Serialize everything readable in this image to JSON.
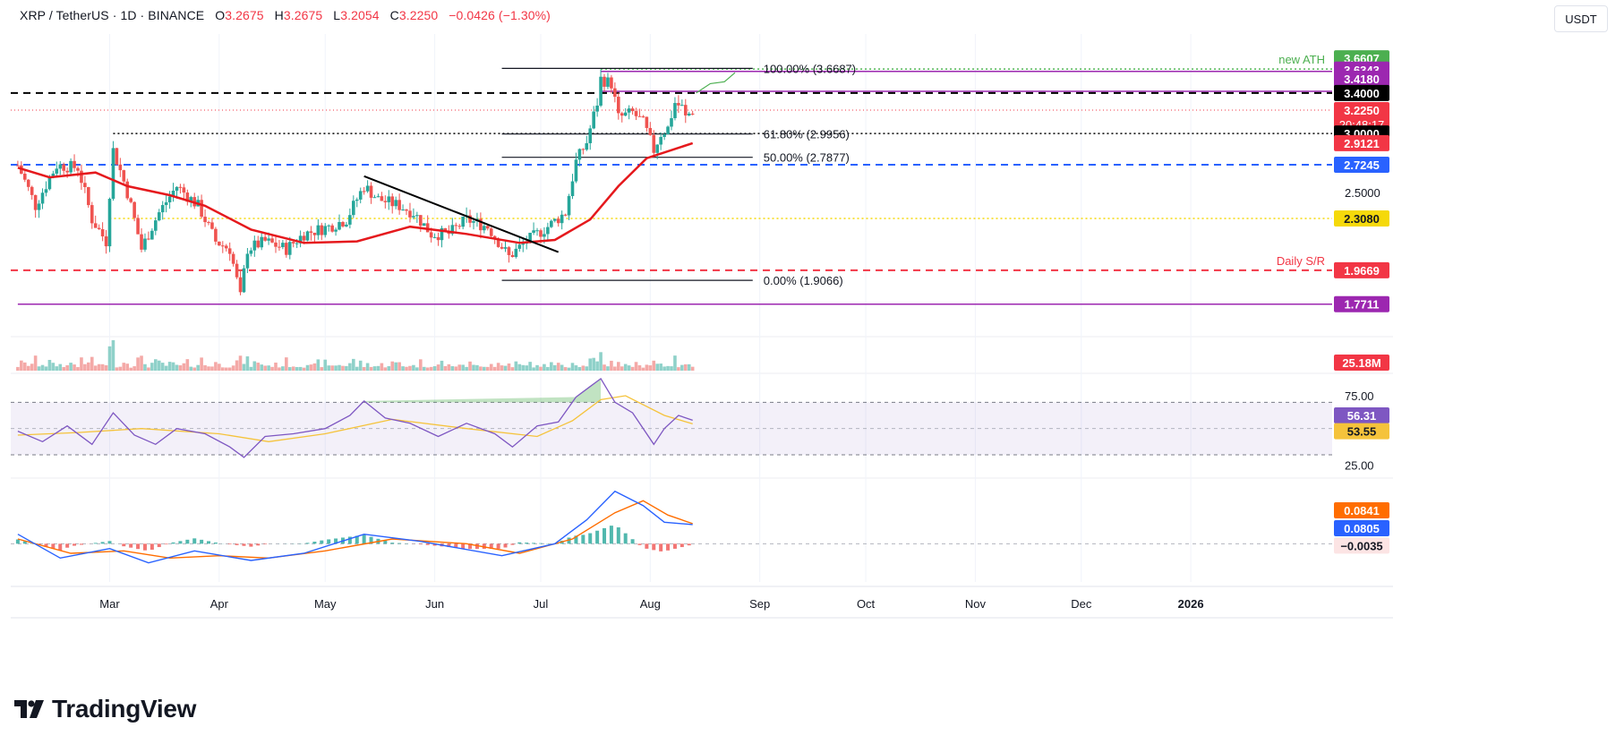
{
  "header": {
    "symbol": "XRP / TetherUS · 1D · BINANCE",
    "open_label": "O",
    "open": "3.2675",
    "high_label": "H",
    "high": "3.2675",
    "low_label": "L",
    "low": "3.2054",
    "close_label": "C",
    "close": "3.2250",
    "change": "−0.0426 (−1.30%)"
  },
  "currency_button": "USDT",
  "brand": {
    "name": "TradingView"
  },
  "colors": {
    "up": "#26a69a",
    "down": "#ef5350",
    "ma": "#e5191d",
    "rsi": "#7e57c2",
    "rsi_ma": "#f5c33b",
    "macd": "#2962ff",
    "signal": "#ff6d00",
    "purple": "#9c27b0",
    "blue": "#2962ff",
    "red": "#f23645",
    "yellow": "#f5d90a",
    "green": "#4caf50",
    "black": "#000000"
  },
  "chart_data": [
    {
      "type": "candlestick",
      "pane": "price",
      "ylim": [
        1.62,
        3.86
      ],
      "scale": "log",
      "x_labels": [
        {
          "label": "Mar",
          "date": "2025-03-01"
        },
        {
          "label": "Apr",
          "date": "2025-04-01"
        },
        {
          "label": "May",
          "date": "2025-05-01"
        },
        {
          "label": "Jun",
          "date": "2025-06-01"
        },
        {
          "label": "Jul",
          "date": "2025-07-01"
        },
        {
          "label": "Aug",
          "date": "2025-08-01"
        },
        {
          "label": "Sep",
          "date": "2025-09-01"
        },
        {
          "label": "Oct",
          "date": "2025-10-01"
        },
        {
          "label": "Nov",
          "date": "2025-11-01"
        },
        {
          "label": "Dec",
          "date": "2025-12-01"
        },
        {
          "label": "2026",
          "date": "2026-01-01"
        }
      ],
      "x_range": [
        "2025-02-01",
        "2026-02-10"
      ],
      "candles_start": "2025-02-03",
      "candles_end": "2025-08-13",
      "close_path": [
        [
          "2025-02-03",
          2.72
        ],
        [
          "2025-02-08",
          2.4
        ],
        [
          "2025-02-14",
          2.72
        ],
        [
          "2025-02-20",
          2.7
        ],
        [
          "2025-02-24",
          2.3
        ],
        [
          "2025-02-28",
          2.15
        ],
        [
          "2025-03-02",
          2.85
        ],
        [
          "2025-03-06",
          2.5
        ],
        [
          "2025-03-10",
          2.1
        ],
        [
          "2025-03-15",
          2.35
        ],
        [
          "2025-03-20",
          2.55
        ],
        [
          "2025-03-26",
          2.4
        ],
        [
          "2025-03-31",
          2.15
        ],
        [
          "2025-04-04",
          2.1
        ],
        [
          "2025-04-07",
          1.81
        ],
        [
          "2025-04-09",
          2.1
        ],
        [
          "2025-04-14",
          2.15
        ],
        [
          "2025-04-20",
          2.1
        ],
        [
          "2025-04-25",
          2.2
        ],
        [
          "2025-05-02",
          2.25
        ],
        [
          "2025-05-07",
          2.3
        ],
        [
          "2025-05-12",
          2.55
        ],
        [
          "2025-05-16",
          2.45
        ],
        [
          "2025-05-22",
          2.4
        ],
        [
          "2025-05-26",
          2.35
        ],
        [
          "2025-05-31",
          2.2
        ],
        [
          "2025-06-05",
          2.2
        ],
        [
          "2025-06-10",
          2.3
        ],
        [
          "2025-06-16",
          2.25
        ],
        [
          "2025-06-22",
          2.05
        ],
        [
          "2025-06-27",
          2.15
        ],
        [
          "2025-07-03",
          2.25
        ],
        [
          "2025-07-08",
          2.35
        ],
        [
          "2025-07-11",
          2.75
        ],
        [
          "2025-07-14",
          2.92
        ],
        [
          "2025-07-17",
          3.3
        ],
        [
          "2025-07-18",
          3.55
        ],
        [
          "2025-07-21",
          3.5
        ],
        [
          "2025-07-23",
          3.15
        ],
        [
          "2025-07-27",
          3.2
        ],
        [
          "2025-07-30",
          3.1
        ],
        [
          "2025-08-02",
          2.85
        ],
        [
          "2025-08-04",
          3.0
        ],
        [
          "2025-08-06",
          3.05
        ],
        [
          "2025-08-08",
          3.3
        ],
        [
          "2025-08-10",
          3.25
        ],
        [
          "2025-08-11",
          3.15
        ],
        [
          "2025-08-13",
          3.225
        ]
      ],
      "moving_average": {
        "points": [
          [
            "2025-02-03",
            2.7
          ],
          [
            "2025-02-12",
            2.62
          ],
          [
            "2025-02-25",
            2.66
          ],
          [
            "2025-03-06",
            2.55
          ],
          [
            "2025-03-18",
            2.48
          ],
          [
            "2025-03-28",
            2.4
          ],
          [
            "2025-04-10",
            2.23
          ],
          [
            "2025-04-25",
            2.14
          ],
          [
            "2025-05-10",
            2.15
          ],
          [
            "2025-05-25",
            2.25
          ],
          [
            "2025-06-10",
            2.2
          ],
          [
            "2025-06-25",
            2.14
          ],
          [
            "2025-07-05",
            2.16
          ],
          [
            "2025-07-15",
            2.3
          ],
          [
            "2025-07-23",
            2.55
          ],
          [
            "2025-07-31",
            2.78
          ],
          [
            "2025-08-07",
            2.85
          ],
          [
            "2025-08-13",
            2.912
          ]
        ]
      },
      "trendline": {
        "from": [
          "2025-05-12",
          2.63
        ],
        "to": [
          "2025-07-06",
          2.08
        ]
      },
      "fib_levels": [
        {
          "label": "100.00% (3.6687)",
          "value": 3.6687,
          "from": "2025-06-20",
          "to": "2025-08-30"
        },
        {
          "label": "61.80% (2.9956)",
          "value": 2.9956,
          "from": "2025-06-20",
          "to": "2025-08-30"
        },
        {
          "label": "50.00% (2.7877)",
          "value": 2.7877,
          "from": "2025-06-20",
          "to": "2025-08-30"
        },
        {
          "label": "0.00% (1.9066)",
          "value": 1.9066,
          "from": "2025-06-20",
          "to": "2025-08-30"
        }
      ],
      "horizontal_levels": [
        {
          "price": 3.6607,
          "badge": "3.6607",
          "color": "green",
          "style": "dotted",
          "from": "2025-07-18",
          "label": "new ATH"
        },
        {
          "price": 3.6343,
          "badge": "3.6343",
          "color": "purple",
          "style": "solid",
          "from": "2025-07-18"
        },
        {
          "price": 3.418,
          "badge": "3.4180",
          "color": "purple",
          "style": "solid",
          "from": "2025-07-18"
        },
        {
          "price": 3.4,
          "badge": "3.4000",
          "color": "black",
          "style": "dashed",
          "from": "2025-02-01"
        },
        {
          "price": 3.225,
          "badge": "3.2250",
          "badge2": "20:48:17",
          "color": "red",
          "style": "dotted-thin",
          "from": "2025-02-01"
        },
        {
          "price": 3.0,
          "badge": "3.0000",
          "color": "black",
          "style": "dotted",
          "from": "2025-03-02"
        },
        {
          "price": 2.9121,
          "badge": "2.9121",
          "color": "red",
          "style": "none"
        },
        {
          "price": 2.7245,
          "badge": "2.7245",
          "color": "blue",
          "style": "dashed",
          "from": "2025-02-01"
        },
        {
          "price": 2.308,
          "badge": "2.3080",
          "color": "yellow",
          "style": "dotted",
          "from": "2025-03-01"
        },
        {
          "price": 1.9669,
          "badge": "1.9669",
          "color": "red",
          "style": "dashed",
          "from": "2025-02-01",
          "label": "Daily S/R"
        },
        {
          "price": 1.7711,
          "badge": "1.7711",
          "color": "purple",
          "style": "solid",
          "from": "2025-02-03"
        }
      ],
      "axis_tick": "2.5000",
      "forecast_path": [
        [
          "2025-08-14",
          3.4
        ],
        [
          "2025-08-18",
          3.5
        ],
        [
          "2025-08-22",
          3.52
        ],
        [
          "2025-08-25",
          3.62
        ]
      ]
    },
    {
      "type": "bar",
      "pane": "volume",
      "last_value": "25.18M"
    },
    {
      "type": "line",
      "pane": "rsi",
      "ylim": [
        15,
        90
      ],
      "ticks": [
        "75.00",
        "25.00"
      ],
      "band": [
        70,
        30
      ],
      "midline": 50,
      "rsi_value": "56.31",
      "rsi_ma_value": "53.55",
      "rsi_path": [
        [
          "2025-02-03",
          48
        ],
        [
          "2025-02-10",
          40
        ],
        [
          "2025-02-17",
          52
        ],
        [
          "2025-02-24",
          38
        ],
        [
          "2025-03-02",
          62
        ],
        [
          "2025-03-08",
          45
        ],
        [
          "2025-03-14",
          38
        ],
        [
          "2025-03-20",
          50
        ],
        [
          "2025-03-28",
          46
        ],
        [
          "2025-04-04",
          36
        ],
        [
          "2025-04-08",
          28
        ],
        [
          "2025-04-14",
          44
        ],
        [
          "2025-04-22",
          46
        ],
        [
          "2025-05-01",
          50
        ],
        [
          "2025-05-08",
          60
        ],
        [
          "2025-05-12",
          71
        ],
        [
          "2025-05-18",
          58
        ],
        [
          "2025-05-25",
          54
        ],
        [
          "2025-06-02",
          44
        ],
        [
          "2025-06-10",
          54
        ],
        [
          "2025-06-18",
          46
        ],
        [
          "2025-06-23",
          36
        ],
        [
          "2025-06-30",
          52
        ],
        [
          "2025-07-06",
          55
        ],
        [
          "2025-07-11",
          74
        ],
        [
          "2025-07-15",
          82
        ],
        [
          "2025-07-18",
          88
        ],
        [
          "2025-07-22",
          70
        ],
        [
          "2025-07-27",
          62
        ],
        [
          "2025-08-02",
          38
        ],
        [
          "2025-08-05",
          50
        ],
        [
          "2025-08-09",
          60
        ],
        [
          "2025-08-13",
          56.3
        ]
      ],
      "rsi_ma_path": [
        [
          "2025-02-03",
          45
        ],
        [
          "2025-02-20",
          47
        ],
        [
          "2025-03-10",
          50
        ],
        [
          "2025-04-01",
          46
        ],
        [
          "2025-04-15",
          40
        ],
        [
          "2025-05-01",
          46
        ],
        [
          "2025-05-20",
          57
        ],
        [
          "2025-06-10",
          50
        ],
        [
          "2025-06-30",
          44
        ],
        [
          "2025-07-10",
          56
        ],
        [
          "2025-07-18",
          72
        ],
        [
          "2025-07-25",
          75
        ],
        [
          "2025-08-05",
          60
        ],
        [
          "2025-08-13",
          53.6
        ]
      ]
    },
    {
      "type": "line",
      "pane": "macd",
      "ylim": [
        -0.16,
        0.26
      ],
      "values": [
        "0.0841",
        "0.0805",
        "−0.0035"
      ],
      "macd_path": [
        [
          "2025-02-03",
          0.04
        ],
        [
          "2025-02-15",
          -0.06
        ],
        [
          "2025-03-01",
          -0.02
        ],
        [
          "2025-03-12",
          -0.08
        ],
        [
          "2025-03-25",
          -0.03
        ],
        [
          "2025-04-10",
          -0.07
        ],
        [
          "2025-04-25",
          -0.04
        ],
        [
          "2025-05-12",
          0.04
        ],
        [
          "2025-05-28",
          0.01
        ],
        [
          "2025-06-20",
          -0.05
        ],
        [
          "2025-07-05",
          0.0
        ],
        [
          "2025-07-14",
          0.1
        ],
        [
          "2025-07-22",
          0.22
        ],
        [
          "2025-07-30",
          0.16
        ],
        [
          "2025-08-05",
          0.09
        ],
        [
          "2025-08-13",
          0.0805
        ]
      ],
      "signal_path": [
        [
          "2025-02-03",
          0.02
        ],
        [
          "2025-02-18",
          -0.04
        ],
        [
          "2025-03-05",
          -0.03
        ],
        [
          "2025-03-18",
          -0.06
        ],
        [
          "2025-04-01",
          -0.05
        ],
        [
          "2025-04-15",
          -0.06
        ],
        [
          "2025-05-01",
          -0.03
        ],
        [
          "2025-05-20",
          0.02
        ],
        [
          "2025-06-10",
          0.0
        ],
        [
          "2025-06-25",
          -0.04
        ],
        [
          "2025-07-10",
          0.02
        ],
        [
          "2025-07-22",
          0.13
        ],
        [
          "2025-07-30",
          0.18
        ],
        [
          "2025-08-06",
          0.12
        ],
        [
          "2025-08-13",
          0.0841
        ]
      ],
      "histogram_value": -0.0035
    }
  ]
}
